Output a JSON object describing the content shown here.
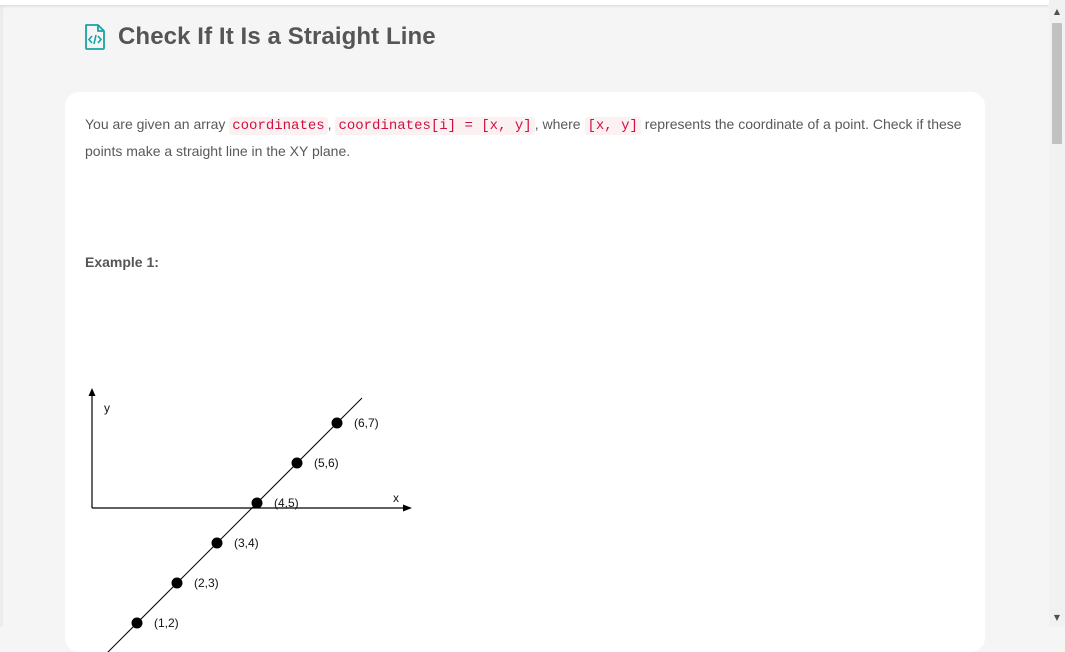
{
  "page": {
    "title": "Check If It Is a Straight Line",
    "icon": "code-file-icon",
    "accent_color": "#1aa3a3"
  },
  "description": {
    "t1": "You are given an array ",
    "c1": "coordinates",
    "t2": ", ",
    "c2": "coordinates[i] = [x, y]",
    "t3": ", where ",
    "c3": "[x, y]",
    "t4": " represents the coordinate of a point. Check if these points make a straight line in the XY plane."
  },
  "example": {
    "label": "Example 1:"
  },
  "chart_data": {
    "type": "scatter",
    "xlabel": "x",
    "ylabel": "y",
    "points": [
      {
        "x": 1,
        "y": 2,
        "label": "(1,2)"
      },
      {
        "x": 2,
        "y": 3,
        "label": "(2,3)"
      },
      {
        "x": 3,
        "y": 4,
        "label": "(3,4)"
      },
      {
        "x": 4,
        "y": 5,
        "label": "(4,5)"
      },
      {
        "x": 5,
        "y": 6,
        "label": "(5,6)"
      },
      {
        "x": 6,
        "y": 7,
        "label": "(6,7)"
      }
    ],
    "line": {
      "slope": 1,
      "intercept": 1
    },
    "grid": false
  },
  "scrollbar": {
    "up_icon": "scroll-up-arrow-icon",
    "down_icon": "scroll-down-arrow-icon"
  }
}
